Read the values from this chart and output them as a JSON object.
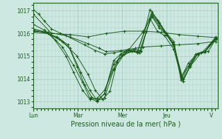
{
  "xlabel": "Pression niveau de la mer( hPa )",
  "background_color": "#cce8e0",
  "plot_bg_color": "#cce8e0",
  "grid_color": "#a8ccc4",
  "line_color": "#1a5c1a",
  "ylim": [
    1012.7,
    1017.35
  ],
  "xlim": [
    0,
    5.05
  ],
  "yticks": [
    1013,
    1014,
    1015,
    1016,
    1017
  ],
  "xtick_labels": [
    "Lun",
    "Mar",
    "Mer",
    "Jeu",
    "V"
  ],
  "xtick_positions": [
    0.0,
    1.22,
    2.44,
    3.66,
    4.88
  ],
  "series": [
    [
      0.0,
      1016.85,
      0.5,
      1016.0,
      1.0,
      1015.95,
      1.5,
      1015.85,
      2.0,
      1016.0,
      2.5,
      1016.1,
      3.0,
      1016.1,
      3.5,
      1016.05,
      4.0,
      1015.95,
      4.5,
      1015.88,
      5.0,
      1015.82
    ],
    [
      0.0,
      1016.4,
      0.3,
      1016.15,
      0.6,
      1015.7,
      0.9,
      1015.0,
      1.1,
      1014.3,
      1.35,
      1013.5,
      1.55,
      1013.1,
      1.75,
      1013.15,
      1.95,
      1013.5,
      2.2,
      1014.45,
      2.4,
      1015.1,
      2.6,
      1015.3,
      2.85,
      1015.15,
      3.05,
      1016.1,
      3.2,
      1017.05,
      3.4,
      1016.6,
      3.6,
      1016.1,
      3.85,
      1015.65,
      4.05,
      1014.05,
      4.25,
      1014.7,
      4.5,
      1015.1,
      4.7,
      1015.2,
      5.0,
      1015.85
    ],
    [
      0.0,
      1016.2,
      0.4,
      1016.05,
      0.8,
      1015.4,
      1.1,
      1014.6,
      1.35,
      1013.85,
      1.55,
      1013.15,
      1.75,
      1013.0,
      1.95,
      1013.35,
      2.2,
      1014.8,
      2.4,
      1015.1,
      2.65,
      1015.25,
      2.85,
      1015.2,
      3.05,
      1016.1,
      3.25,
      1016.95,
      3.45,
      1016.5,
      3.65,
      1016.0,
      3.85,
      1015.55,
      4.05,
      1013.95,
      4.25,
      1014.55,
      4.45,
      1015.1,
      4.65,
      1015.2,
      5.0,
      1015.82
    ],
    [
      0.0,
      1016.15,
      0.3,
      1016.05,
      0.65,
      1015.85,
      0.95,
      1015.5,
      1.2,
      1014.55,
      1.4,
      1013.75,
      1.6,
      1013.2,
      1.75,
      1013.05,
      1.95,
      1013.35,
      2.2,
      1014.65,
      2.45,
      1015.05,
      2.7,
      1015.2,
      2.9,
      1015.15,
      3.1,
      1016.1,
      3.25,
      1016.85,
      3.45,
      1016.45,
      3.65,
      1015.95,
      3.85,
      1015.5,
      4.1,
      1013.9,
      4.3,
      1014.6,
      4.5,
      1015.1,
      4.7,
      1015.2,
      5.0,
      1015.8
    ],
    [
      0.0,
      1016.1,
      0.35,
      1016.05,
      0.7,
      1015.75,
      1.0,
      1015.35,
      1.3,
      1014.3,
      1.55,
      1013.5,
      1.75,
      1013.05,
      1.95,
      1013.15,
      2.2,
      1014.4,
      2.5,
      1015.1,
      2.75,
      1015.25,
      2.95,
      1015.2,
      3.1,
      1016.1,
      3.25,
      1016.8,
      3.45,
      1016.35,
      3.65,
      1015.95,
      3.85,
      1015.45,
      4.1,
      1013.9,
      4.3,
      1014.55,
      4.5,
      1015.1,
      4.7,
      1015.18,
      5.0,
      1015.78
    ],
    [
      0.0,
      1016.05,
      0.4,
      1016.0,
      0.8,
      1015.65,
      1.2,
      1015.0,
      1.5,
      1014.2,
      1.7,
      1013.5,
      1.9,
      1013.1,
      2.1,
      1013.45,
      2.3,
      1014.75,
      2.55,
      1015.2,
      2.75,
      1015.3,
      2.95,
      1015.25,
      3.1,
      1016.1,
      3.25,
      1016.75,
      3.45,
      1016.25,
      3.65,
      1015.95,
      3.85,
      1015.5,
      4.1,
      1014.0,
      4.3,
      1014.55,
      4.6,
      1015.15,
      4.8,
      1015.22,
      5.0,
      1015.76
    ],
    [
      0.0,
      1017.05,
      0.15,
      1016.85,
      0.3,
      1016.55,
      0.5,
      1016.2,
      0.75,
      1016.0,
      1.0,
      1015.85,
      1.5,
      1015.55,
      1.8,
      1015.35,
      2.0,
      1015.2,
      2.4,
      1015.25,
      2.8,
      1015.35,
      3.0,
      1015.4,
      3.5,
      1015.45,
      4.0,
      1015.5,
      4.5,
      1015.55,
      5.0,
      1015.65
    ],
    [
      0.0,
      1016.1,
      0.4,
      1016.05,
      0.9,
      1015.9,
      1.4,
      1015.5,
      1.7,
      1015.25,
      1.95,
      1015.1,
      2.2,
      1015.15,
      2.6,
      1015.25,
      3.0,
      1016.05,
      3.2,
      1016.65,
      3.4,
      1016.1,
      3.6,
      1015.9,
      3.85,
      1015.3,
      4.05,
      1014.1,
      4.25,
      1014.55,
      4.5,
      1015.1,
      4.7,
      1015.18,
      5.0,
      1015.74
    ]
  ]
}
